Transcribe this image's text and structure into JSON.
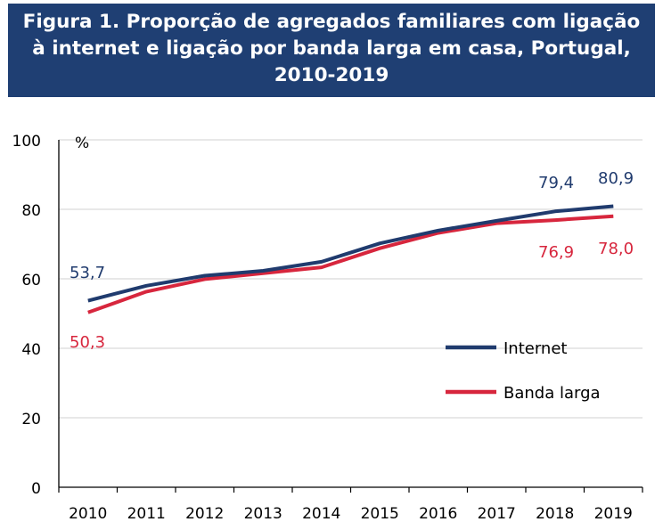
{
  "title": {
    "line1": "Figura 1. Proporção de agregados familiares com ligação",
    "line2": "à internet e ligação por banda larga em casa, Portugal,",
    "line3": "2010-2019"
  },
  "colors": {
    "header_bg": "#1f3f73",
    "internet": "#203b6e",
    "banda_larga": "#d7263d",
    "grid": "#d9d9d9",
    "axis": "#000000"
  },
  "chart_data": {
    "type": "line",
    "title": "Figura 1. Proporção de agregados familiares com ligação à internet e ligação por banda larga em casa, Portugal, 2010-2019",
    "xlabel": "",
    "ylabel": "%",
    "unit_label": "%",
    "ylim": [
      0,
      100
    ],
    "yticks": [
      "0",
      "20",
      "40",
      "60",
      "80",
      "100"
    ],
    "categories": [
      "2010",
      "2011",
      "2012",
      "2013",
      "2014",
      "2015",
      "2016",
      "2017",
      "2018",
      "2019"
    ],
    "series": [
      {
        "name": "Internet",
        "values": [
          53.7,
          58.0,
          60.9,
          62.3,
          64.9,
          70.2,
          73.9,
          76.7,
          79.4,
          80.9
        ]
      },
      {
        "name": "Banda larga",
        "values": [
          50.3,
          56.3,
          59.9,
          61.6,
          63.3,
          68.8,
          73.2,
          76.0,
          76.9,
          78.0
        ]
      }
    ],
    "annotations": [
      {
        "series": 0,
        "index": 0,
        "text": "53,7"
      },
      {
        "series": 1,
        "index": 0,
        "text": "50,3"
      },
      {
        "series": 0,
        "index": 8,
        "text": "79,4"
      },
      {
        "series": 0,
        "index": 9,
        "text": "80,9"
      },
      {
        "series": 1,
        "index": 8,
        "text": "76,9"
      },
      {
        "series": 1,
        "index": 9,
        "text": "78,0"
      }
    ],
    "legend": {
      "placement": "inside-right",
      "items": [
        "Internet",
        "Banda larga"
      ]
    },
    "grid": true
  }
}
